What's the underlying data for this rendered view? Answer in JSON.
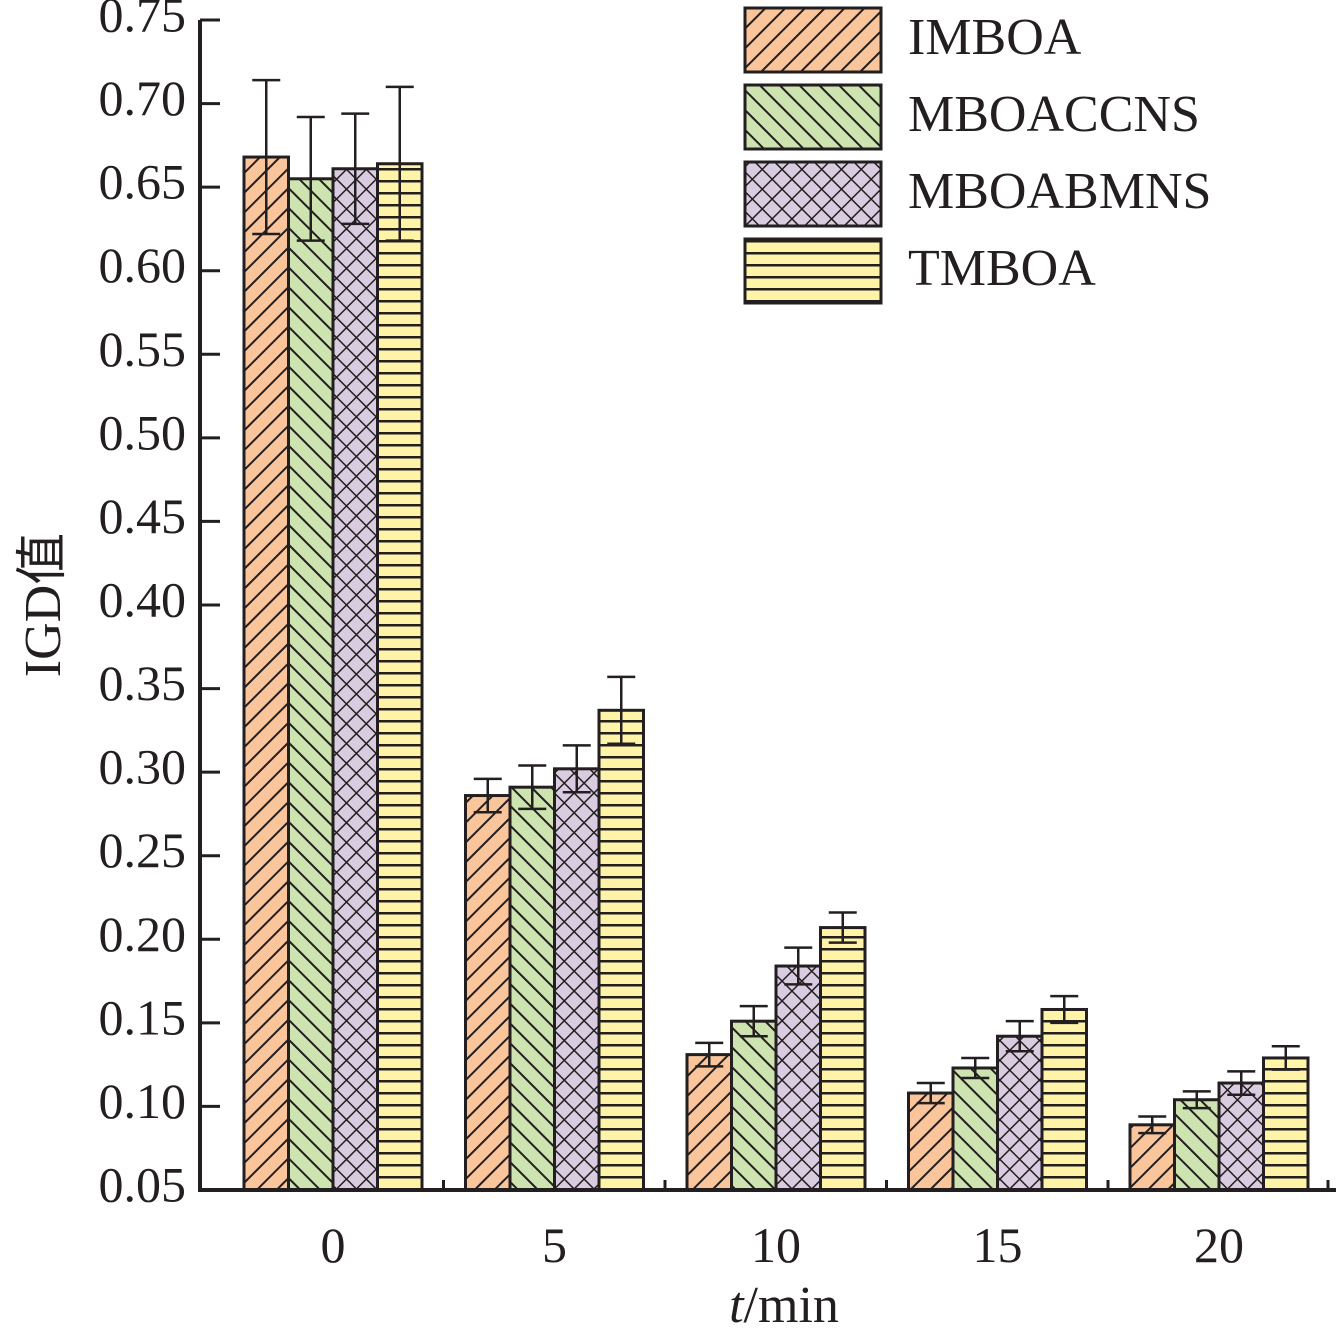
{
  "chart_data": {
    "type": "bar",
    "title": "",
    "xlabel_italic": "t",
    "xlabel_rest": "/min",
    "ylabel": "IGD值",
    "ylim": [
      0.05,
      0.75
    ],
    "yticks": [
      "0.05",
      "0.10",
      "0.15",
      "0.20",
      "0.25",
      "0.30",
      "0.35",
      "0.40",
      "0.45",
      "0.50",
      "0.55",
      "0.60",
      "0.65",
      "0.70",
      "0.75"
    ],
    "categories": [
      "0",
      "5",
      "10",
      "15",
      "20"
    ],
    "legend_position": "top-right",
    "series": [
      {
        "name": "IMBOA",
        "color": "#fbc59c",
        "pattern": "diag-right",
        "values": [
          0.668,
          0.286,
          0.131,
          0.108,
          0.089
        ],
        "errors": [
          0.046,
          0.01,
          0.007,
          0.006,
          0.005
        ]
      },
      {
        "name": "MBOACCNS",
        "color": "#cde3b0",
        "pattern": "diag-left",
        "values": [
          0.655,
          0.291,
          0.151,
          0.123,
          0.104
        ],
        "errors": [
          0.037,
          0.013,
          0.009,
          0.006,
          0.005
        ]
      },
      {
        "name": "MBOABMNS",
        "color": "#d9cce0",
        "pattern": "crosshatch",
        "values": [
          0.661,
          0.302,
          0.184,
          0.142,
          0.114
        ],
        "errors": [
          0.033,
          0.014,
          0.011,
          0.009,
          0.007
        ]
      },
      {
        "name": "TMBOA",
        "color": "#fff3a8",
        "pattern": "horizontal",
        "values": [
          0.664,
          0.337,
          0.207,
          0.158,
          0.129
        ],
        "errors": [
          0.046,
          0.02,
          0.009,
          0.008,
          0.007
        ]
      }
    ]
  }
}
